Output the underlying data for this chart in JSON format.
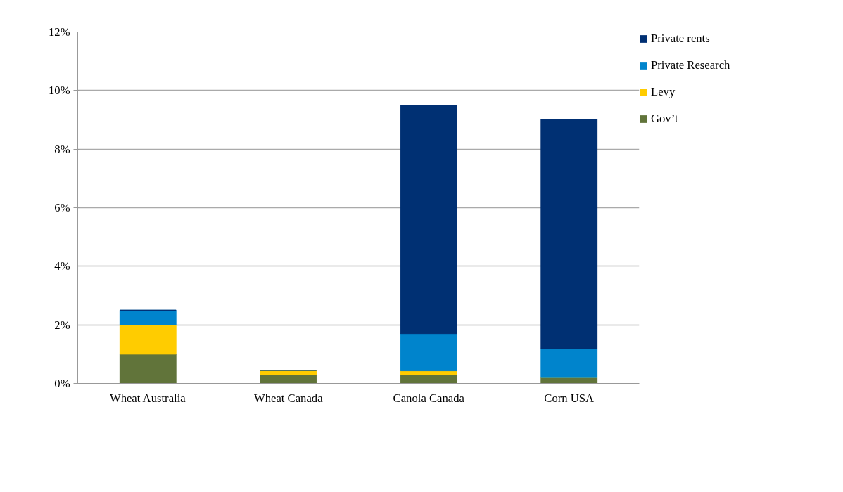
{
  "chart_data": {
    "type": "bar",
    "stacked": true,
    "categories": [
      "Wheat Australia",
      "Wheat Canada",
      "Canola Canada",
      "Corn USA"
    ],
    "series": [
      {
        "name": "Gov’t",
        "color": "#61743a",
        "values": [
          1.0,
          0.3,
          0.3,
          0.2
        ]
      },
      {
        "name": "Levy",
        "color": "#ffcc00",
        "values": [
          1.0,
          0.15,
          0.13,
          0
        ]
      },
      {
        "name": "Private Research",
        "color": "#0084cc",
        "values": [
          0.5,
          0,
          1.27,
          0.98
        ]
      },
      {
        "name": "Private rents",
        "color": "#003073",
        "values": [
          0,
          0,
          7.8,
          7.84
        ]
      }
    ],
    "ylim": [
      0,
      12
    ],
    "yticks": [
      {
        "value": 0,
        "label": "0%"
      },
      {
        "value": 2,
        "label": "2%"
      },
      {
        "value": 4,
        "label": "4%"
      },
      {
        "value": 6,
        "label": "6%"
      },
      {
        "value": 8,
        "label": "8%"
      },
      {
        "value": 10,
        "label": "10%"
      },
      {
        "value": 12,
        "label": "12%"
      }
    ],
    "grid": "y",
    "legend": "right"
  }
}
